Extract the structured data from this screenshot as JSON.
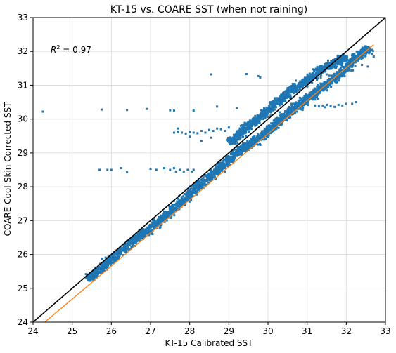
{
  "chart_data": {
    "type": "scatter",
    "title": "KT-15 vs. COARE SST (when not raining)",
    "xlabel": "KT-15 Calibrated SST",
    "ylabel": "COARE Cool-Skin Corrected SST",
    "xlim": [
      24,
      33
    ],
    "ylim": [
      24,
      33
    ],
    "xticks": [
      24,
      25,
      26,
      27,
      28,
      29,
      30,
      31,
      32,
      33
    ],
    "yticks": [
      24,
      25,
      26,
      27,
      28,
      29,
      30,
      31,
      32,
      33
    ],
    "grid": true,
    "annotation": {
      "prefix": "R",
      "superscript": "2",
      "suffix": " = 0.97",
      "position_data": [
        24.45,
        32.05
      ]
    },
    "colors": {
      "points": "#1f77b4",
      "identity_line": "#000000",
      "fit_line": "#ff7f0e",
      "grid": "#d9d9d9"
    },
    "series": [
      {
        "type": "scatter",
        "segments": [
          [
            [
              25.4,
              25.25
            ],
            [
              25.6,
              25.45
            ],
            [
              25.8,
              25.65
            ],
            [
              26.0,
              25.85
            ],
            [
              26.2,
              26.05
            ],
            [
              26.4,
              26.25
            ],
            [
              26.6,
              26.45
            ],
            [
              26.8,
              26.6
            ],
            [
              27.0,
              26.75
            ],
            [
              27.2,
              26.95
            ],
            [
              27.4,
              27.15
            ],
            [
              27.6,
              27.35
            ],
            [
              27.8,
              27.55
            ],
            [
              28.0,
              27.75
            ],
            [
              28.2,
              28.0
            ],
            [
              28.4,
              28.2
            ],
            [
              28.6,
              28.4
            ],
            [
              28.8,
              28.6
            ],
            [
              29.0,
              28.8
            ],
            [
              29.2,
              29.0
            ],
            [
              29.4,
              29.15
            ],
            [
              29.6,
              29.3
            ],
            [
              29.8,
              29.45
            ],
            [
              30.0,
              29.65
            ],
            [
              30.2,
              29.85
            ],
            [
              30.4,
              30.05
            ],
            [
              30.6,
              30.25
            ],
            [
              30.8,
              30.4
            ],
            [
              31.0,
              30.6
            ],
            [
              31.2,
              30.75
            ],
            [
              31.4,
              30.95
            ],
            [
              31.6,
              31.1
            ],
            [
              31.8,
              31.3
            ],
            [
              32.0,
              31.5
            ],
            [
              32.2,
              31.75
            ],
            [
              32.4,
              31.95
            ],
            [
              32.6,
              32.1
            ]
          ],
          [
            [
              29.0,
              29.3
            ],
            [
              29.2,
              29.5
            ],
            [
              29.4,
              29.7
            ],
            [
              29.6,
              29.9
            ],
            [
              29.8,
              30.05
            ],
            [
              30.0,
              30.25
            ],
            [
              30.2,
              30.45
            ],
            [
              30.4,
              30.65
            ],
            [
              30.6,
              30.85
            ],
            [
              30.8,
              31.0
            ],
            [
              31.0,
              31.15
            ],
            [
              31.2,
              31.3
            ],
            [
              31.4,
              31.5
            ],
            [
              31.6,
              31.6
            ],
            [
              31.8,
              31.7
            ],
            [
              32.0,
              31.85
            ]
          ]
        ],
        "spread": 0.16,
        "outliers": [
          [
            24.25,
            30.22
          ],
          [
            25.75,
            30.28
          ],
          [
            26.4,
            30.27
          ],
          [
            26.9,
            30.3
          ],
          [
            27.5,
            30.26
          ],
          [
            27.6,
            30.25
          ],
          [
            28.1,
            30.25
          ],
          [
            28.7,
            30.37
          ],
          [
            29.2,
            30.32
          ],
          [
            29.9,
            30.1
          ],
          [
            30.6,
            30.45
          ],
          [
            30.3,
            30.2
          ],
          [
            25.7,
            28.5
          ],
          [
            25.9,
            28.5
          ],
          [
            26.0,
            28.5
          ],
          [
            26.25,
            28.55
          ],
          [
            26.4,
            28.43
          ],
          [
            27.0,
            28.53
          ],
          [
            27.15,
            28.5
          ],
          [
            27.35,
            28.55
          ],
          [
            27.5,
            28.5
          ],
          [
            27.6,
            28.55
          ],
          [
            27.65,
            28.45
          ],
          [
            27.75,
            28.5
          ],
          [
            27.85,
            28.45
          ],
          [
            27.95,
            28.5
          ],
          [
            28.05,
            28.45
          ],
          [
            28.1,
            28.5
          ],
          [
            27.6,
            29.6
          ],
          [
            27.7,
            29.63
          ],
          [
            27.8,
            29.6
          ],
          [
            27.9,
            29.57
          ],
          [
            28.0,
            29.62
          ],
          [
            28.1,
            29.6
          ],
          [
            28.2,
            29.58
          ],
          [
            28.3,
            29.65
          ],
          [
            28.4,
            29.6
          ],
          [
            28.5,
            29.68
          ],
          [
            28.6,
            29.65
          ],
          [
            28.7,
            29.72
          ],
          [
            28.8,
            29.7
          ],
          [
            28.9,
            29.65
          ],
          [
            29.0,
            29.75
          ],
          [
            28.55,
            29.45
          ],
          [
            28.3,
            29.35
          ],
          [
            27.7,
            29.72
          ],
          [
            28.0,
            29.48
          ],
          [
            31.2,
            30.4
          ],
          [
            31.3,
            30.38
          ],
          [
            31.4,
            30.4
          ],
          [
            31.5,
            30.42
          ],
          [
            31.6,
            30.38
          ],
          [
            31.7,
            30.36
          ],
          [
            31.8,
            30.42
          ],
          [
            31.9,
            30.4
          ],
          [
            32.0,
            30.45
          ],
          [
            32.15,
            30.45
          ],
          [
            32.25,
            30.5
          ],
          [
            31.45,
            30.35
          ],
          [
            28.55,
            31.32
          ],
          [
            29.45,
            31.33
          ],
          [
            29.75,
            31.27
          ],
          [
            29.8,
            31.23
          ],
          [
            32.7,
            31.85
          ],
          [
            32.65,
            31.92
          ],
          [
            32.5,
            32.15
          ],
          [
            32.55,
            31.55
          ],
          [
            32.4,
            31.6
          ]
        ]
      },
      {
        "type": "line",
        "name": "identity",
        "x": [
          24,
          33
        ],
        "y": [
          24,
          33
        ]
      },
      {
        "type": "line",
        "name": "fit",
        "x": [
          24.3,
          32.7
        ],
        "y": [
          24.0,
          32.2
        ]
      }
    ]
  }
}
